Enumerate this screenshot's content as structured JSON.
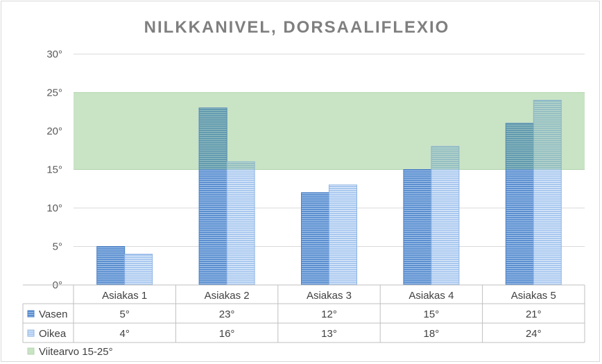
{
  "chart_data": {
    "type": "bar",
    "title": "NILKKANIVEL, DORSAALIFLEXIO",
    "categories": [
      "Asiakas 1",
      "Asiakas 2",
      "Asiakas 3",
      "Asiakas 4",
      "Asiakas 5"
    ],
    "series": [
      {
        "name": "Vasen",
        "values": [
          5,
          23,
          12,
          15,
          21
        ],
        "labels": [
          "5°",
          "23°",
          "12°",
          "15°",
          "21°"
        ],
        "color": "#5b8fd0"
      },
      {
        "name": "Oikea",
        "values": [
          4,
          16,
          13,
          18,
          24
        ],
        "labels": [
          "4°",
          "16°",
          "13°",
          "18°",
          "24°"
        ],
        "color": "#a9c8ef"
      }
    ],
    "reference_band": {
      "name": "Viitearvo 15-25°",
      "min": 15,
      "max": 25,
      "color": "#c9e3c5"
    },
    "yticks": [
      "0°",
      "5°",
      "10°",
      "15°",
      "20°",
      "25°",
      "30°"
    ],
    "ylim": [
      0,
      30
    ],
    "grid": true,
    "data_table": true,
    "legend_position": "bottom-left in data table"
  }
}
